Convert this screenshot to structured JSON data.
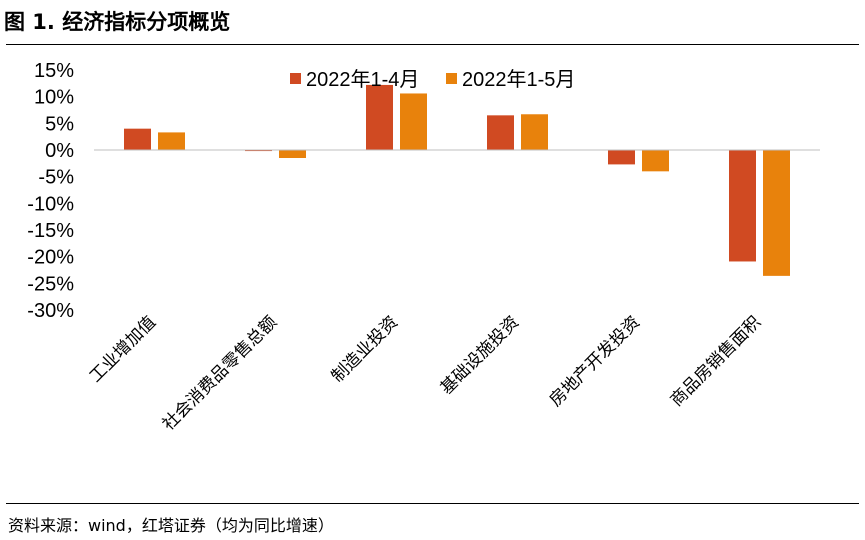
{
  "header": {
    "title": "图 1. 经济指标分项概览"
  },
  "footer": {
    "source": "资料来源：wind，红塔证券（均为同比增速）"
  },
  "colors": {
    "series_1": "#D04A22",
    "series_2": "#E8820C",
    "axis": "#bfbfbf"
  },
  "chart_data": {
    "type": "bar",
    "title": "",
    "xlabel": "",
    "ylabel": "",
    "categories": [
      "工业增加值",
      "社会消费品零售总额",
      "制造业投资",
      "基础设施投资",
      "房地产开发投资",
      "商品房销售面积"
    ],
    "series": [
      {
        "name": "2022年1-4月",
        "values": [
          4.0,
          -0.2,
          12.2,
          6.5,
          -2.7,
          -20.9
        ]
      },
      {
        "name": "2022年1-5月",
        "values": [
          3.3,
          -1.5,
          10.6,
          6.7,
          -4.0,
          -23.6
        ]
      }
    ],
    "yticks": [
      "15%",
      "10%",
      "5%",
      "0%",
      "-5%",
      "-10%",
      "-15%",
      "-20%",
      "-25%",
      "-30%"
    ],
    "ylim": [
      -30,
      15
    ],
    "grid": false,
    "legend": "top-center"
  }
}
